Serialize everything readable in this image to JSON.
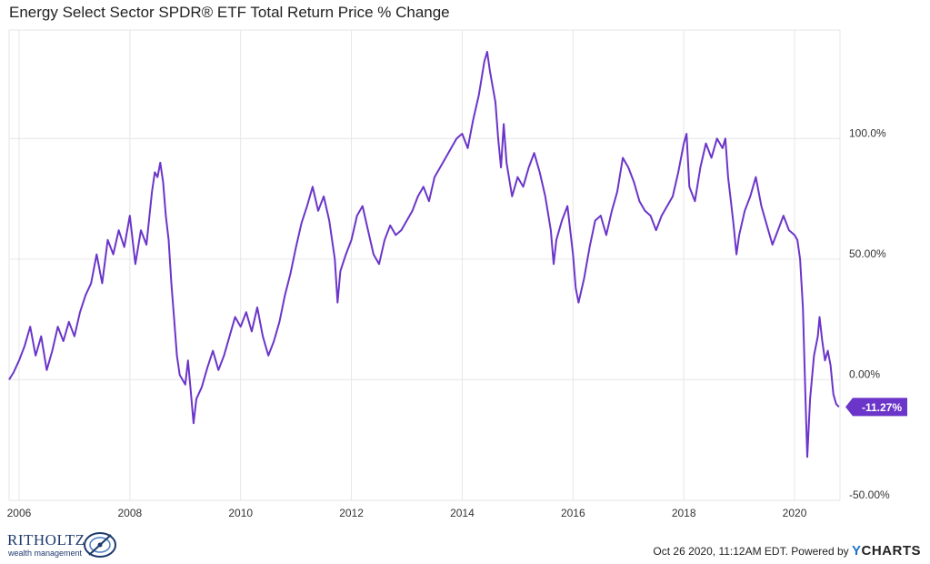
{
  "chart_data": {
    "type": "line",
    "title": "Energy Select Sector SPDR® ETF Total Return Price % Change",
    "xlabel": "",
    "ylabel": "",
    "xlim": [
      2005.82,
      2020.82
    ],
    "ylim": [
      -50,
      145
    ],
    "yticks": [
      {
        "v": 100,
        "label": "100.0%"
      },
      {
        "v": 50,
        "label": "50.00%"
      },
      {
        "v": 0,
        "label": "0.00%"
      },
      {
        "v": -50,
        "label": "-50.00%"
      }
    ],
    "xticks": [
      {
        "v": 2006,
        "label": "2006"
      },
      {
        "v": 2008,
        "label": "2008"
      },
      {
        "v": 2010,
        "label": "2010"
      },
      {
        "v": 2012,
        "label": "2012"
      },
      {
        "v": 2014,
        "label": "2014"
      },
      {
        "v": 2016,
        "label": "2016"
      },
      {
        "v": 2018,
        "label": "2018"
      },
      {
        "v": 2020,
        "label": "2020"
      }
    ],
    "grid": true,
    "series": [
      {
        "color": "#6b35c9",
        "last_value_label": "-11.27%",
        "points": [
          [
            2005.82,
            0
          ],
          [
            2005.9,
            3
          ],
          [
            2006.0,
            8
          ],
          [
            2006.1,
            14
          ],
          [
            2006.2,
            22
          ],
          [
            2006.3,
            10
          ],
          [
            2006.4,
            18
          ],
          [
            2006.5,
            4
          ],
          [
            2006.6,
            12
          ],
          [
            2006.7,
            22
          ],
          [
            2006.8,
            16
          ],
          [
            2006.9,
            24
          ],
          [
            2007.0,
            18
          ],
          [
            2007.1,
            28
          ],
          [
            2007.2,
            35
          ],
          [
            2007.3,
            40
          ],
          [
            2007.4,
            52
          ],
          [
            2007.5,
            40
          ],
          [
            2007.6,
            58
          ],
          [
            2007.7,
            52
          ],
          [
            2007.8,
            62
          ],
          [
            2007.9,
            55
          ],
          [
            2008.0,
            68
          ],
          [
            2008.1,
            48
          ],
          [
            2008.2,
            62
          ],
          [
            2008.3,
            56
          ],
          [
            2008.4,
            78
          ],
          [
            2008.45,
            86
          ],
          [
            2008.5,
            84
          ],
          [
            2008.55,
            90
          ],
          [
            2008.6,
            82
          ],
          [
            2008.65,
            68
          ],
          [
            2008.7,
            58
          ],
          [
            2008.75,
            40
          ],
          [
            2008.8,
            25
          ],
          [
            2008.85,
            10
          ],
          [
            2008.9,
            2
          ],
          [
            2009.0,
            -2
          ],
          [
            2009.05,
            8
          ],
          [
            2009.1,
            -5
          ],
          [
            2009.15,
            -18
          ],
          [
            2009.2,
            -8
          ],
          [
            2009.3,
            -3
          ],
          [
            2009.4,
            5
          ],
          [
            2009.5,
            12
          ],
          [
            2009.6,
            4
          ],
          [
            2009.7,
            10
          ],
          [
            2009.8,
            18
          ],
          [
            2009.9,
            26
          ],
          [
            2010.0,
            22
          ],
          [
            2010.1,
            28
          ],
          [
            2010.2,
            20
          ],
          [
            2010.3,
            30
          ],
          [
            2010.4,
            18
          ],
          [
            2010.5,
            10
          ],
          [
            2010.6,
            16
          ],
          [
            2010.7,
            24
          ],
          [
            2010.8,
            35
          ],
          [
            2010.9,
            44
          ],
          [
            2011.0,
            55
          ],
          [
            2011.1,
            65
          ],
          [
            2011.2,
            72
          ],
          [
            2011.3,
            80
          ],
          [
            2011.4,
            70
          ],
          [
            2011.5,
            76
          ],
          [
            2011.6,
            66
          ],
          [
            2011.7,
            50
          ],
          [
            2011.75,
            32
          ],
          [
            2011.8,
            45
          ],
          [
            2011.9,
            52
          ],
          [
            2012.0,
            58
          ],
          [
            2012.1,
            68
          ],
          [
            2012.2,
            72
          ],
          [
            2012.3,
            62
          ],
          [
            2012.4,
            52
          ],
          [
            2012.5,
            48
          ],
          [
            2012.6,
            58
          ],
          [
            2012.7,
            64
          ],
          [
            2012.8,
            60
          ],
          [
            2012.9,
            62
          ],
          [
            2013.0,
            66
          ],
          [
            2013.1,
            70
          ],
          [
            2013.2,
            76
          ],
          [
            2013.3,
            80
          ],
          [
            2013.4,
            74
          ],
          [
            2013.5,
            84
          ],
          [
            2013.6,
            88
          ],
          [
            2013.7,
            92
          ],
          [
            2013.8,
            96
          ],
          [
            2013.9,
            100
          ],
          [
            2014.0,
            102
          ],
          [
            2014.1,
            96
          ],
          [
            2014.2,
            108
          ],
          [
            2014.3,
            118
          ],
          [
            2014.4,
            132
          ],
          [
            2014.45,
            136
          ],
          [
            2014.5,
            128
          ],
          [
            2014.6,
            115
          ],
          [
            2014.65,
            100
          ],
          [
            2014.7,
            88
          ],
          [
            2014.75,
            106
          ],
          [
            2014.8,
            90
          ],
          [
            2014.9,
            76
          ],
          [
            2015.0,
            84
          ],
          [
            2015.1,
            80
          ],
          [
            2015.2,
            88
          ],
          [
            2015.3,
            94
          ],
          [
            2015.4,
            86
          ],
          [
            2015.5,
            76
          ],
          [
            2015.6,
            62
          ],
          [
            2015.65,
            48
          ],
          [
            2015.7,
            58
          ],
          [
            2015.8,
            66
          ],
          [
            2015.9,
            72
          ],
          [
            2016.0,
            52
          ],
          [
            2016.05,
            38
          ],
          [
            2016.1,
            32
          ],
          [
            2016.2,
            42
          ],
          [
            2016.3,
            55
          ],
          [
            2016.4,
            66
          ],
          [
            2016.5,
            68
          ],
          [
            2016.6,
            60
          ],
          [
            2016.7,
            70
          ],
          [
            2016.8,
            78
          ],
          [
            2016.9,
            92
          ],
          [
            2017.0,
            88
          ],
          [
            2017.1,
            82
          ],
          [
            2017.2,
            74
          ],
          [
            2017.3,
            70
          ],
          [
            2017.4,
            68
          ],
          [
            2017.5,
            62
          ],
          [
            2017.6,
            68
          ],
          [
            2017.7,
            72
          ],
          [
            2017.8,
            76
          ],
          [
            2017.9,
            86
          ],
          [
            2018.0,
            98
          ],
          [
            2018.05,
            102
          ],
          [
            2018.1,
            80
          ],
          [
            2018.2,
            74
          ],
          [
            2018.3,
            88
          ],
          [
            2018.4,
            98
          ],
          [
            2018.5,
            92
          ],
          [
            2018.6,
            100
          ],
          [
            2018.7,
            96
          ],
          [
            2018.75,
            100
          ],
          [
            2018.8,
            84
          ],
          [
            2018.85,
            74
          ],
          [
            2018.9,
            64
          ],
          [
            2018.95,
            52
          ],
          [
            2019.0,
            60
          ],
          [
            2019.1,
            70
          ],
          [
            2019.2,
            76
          ],
          [
            2019.3,
            84
          ],
          [
            2019.4,
            72
          ],
          [
            2019.5,
            64
          ],
          [
            2019.6,
            56
          ],
          [
            2019.7,
            62
          ],
          [
            2019.8,
            68
          ],
          [
            2019.9,
            62
          ],
          [
            2020.0,
            60
          ],
          [
            2020.05,
            58
          ],
          [
            2020.1,
            50
          ],
          [
            2020.15,
            30
          ],
          [
            2020.2,
            -10
          ],
          [
            2020.23,
            -32
          ],
          [
            2020.28,
            -8
          ],
          [
            2020.35,
            10
          ],
          [
            2020.42,
            18
          ],
          [
            2020.45,
            26
          ],
          [
            2020.5,
            16
          ],
          [
            2020.55,
            8
          ],
          [
            2020.6,
            12
          ],
          [
            2020.65,
            6
          ],
          [
            2020.7,
            -6
          ],
          [
            2020.75,
            -10
          ],
          [
            2020.8,
            -11.27
          ]
        ]
      }
    ]
  },
  "footer": {
    "timestamp": "Oct 26 2020, 11:12AM EDT.",
    "powered_by": "Powered by",
    "brand_y": "Y",
    "brand_rest": "CHARTS"
  },
  "logo": {
    "name": "RITHOLTZ",
    "subtitle": "wealth management"
  }
}
